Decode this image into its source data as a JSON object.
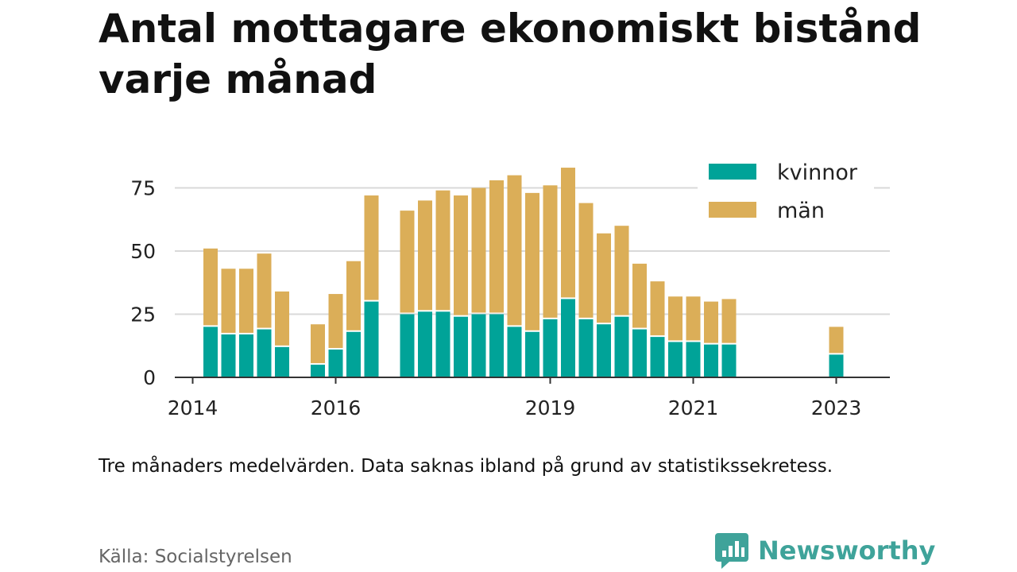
{
  "title": "Antal mottagare ekonomiskt bistånd varje månad",
  "note": "Tre månaders medelvärden. Data saknas ibland på grund av statistikssekretess.",
  "source": "Källa: Socialstyrelsen",
  "brand": {
    "name": "Newsworthy",
    "icon": "newsworthy-logo-icon",
    "color": "#3fa39a"
  },
  "chart_data": {
    "type": "bar",
    "stacked": true,
    "ylim": [
      0,
      85
    ],
    "y_ticks": [
      0,
      25,
      50,
      75
    ],
    "grid": true,
    "legend_position": "top-right",
    "x_axis_ticks": [
      {
        "label": "2014",
        "x": "2014-01"
      },
      {
        "label": "2016",
        "x": "2016-01"
      },
      {
        "label": "2019",
        "x": "2019-01"
      },
      {
        "label": "2021",
        "x": "2021-01"
      },
      {
        "label": "2023",
        "x": "2023-01"
      }
    ],
    "x_range": [
      "2013-10",
      "2023-10"
    ],
    "x": [
      "2014-04",
      "2014-07",
      "2014-10",
      "2015-01",
      "2015-04",
      "2015-10",
      "2016-01",
      "2016-04",
      "2016-07",
      "2017-01",
      "2017-04",
      "2017-07",
      "2017-10",
      "2018-01",
      "2018-04",
      "2018-07",
      "2018-10",
      "2019-01",
      "2019-04",
      "2019-07",
      "2019-10",
      "2020-01",
      "2020-04",
      "2020-07",
      "2020-10",
      "2021-01",
      "2021-04",
      "2021-07",
      "2023-01"
    ],
    "series": [
      {
        "name": "kvinnor",
        "color": "#00a398",
        "values": [
          20,
          17,
          17,
          19,
          12,
          5,
          11,
          18,
          30,
          25,
          26,
          26,
          24,
          25,
          25,
          20,
          18,
          23,
          31,
          23,
          21,
          24,
          19,
          16,
          14,
          14,
          13,
          13,
          9
        ]
      },
      {
        "name": "män",
        "color": "#dbae58",
        "values": [
          31,
          26,
          26,
          30,
          22,
          16,
          22,
          28,
          42,
          41,
          44,
          48,
          48,
          50,
          53,
          60,
          55,
          53,
          52,
          46,
          36,
          36,
          26,
          22,
          18,
          18,
          17,
          18,
          11
        ]
      }
    ]
  }
}
